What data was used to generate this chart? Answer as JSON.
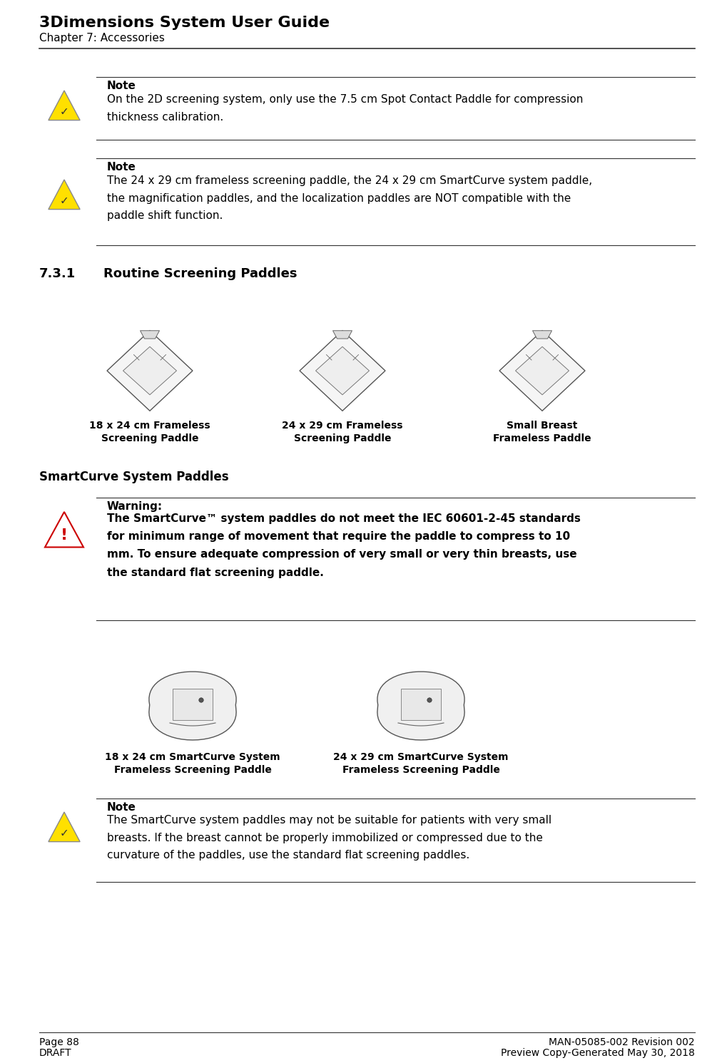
{
  "title_line1": "3Dimensions System User Guide",
  "title_line2": "Chapter 7: Accessories",
  "note1_title": "Note",
  "note1_text": "On the 2D screening system, only use the 7.5 cm Spot Contact Paddle for compression\nthickness calibration.",
  "note2_title": "Note",
  "note2_text": "The 24 x 29 cm frameless screening paddle, the 24 x 29 cm SmartCurve system paddle,\nthe magnification paddles, and the localization paddles are NOT compatible with the\npaddle shift function.",
  "section_num": "7.3.1",
  "section_title": "Routine Screening Paddles",
  "paddle1_line1": "18 x 24 cm Frameless",
  "paddle1_line2": "Screening Paddle",
  "paddle2_line1": "24 x 29 cm Frameless",
  "paddle2_line2": "Screening Paddle",
  "paddle3_line1": "Small Breast",
  "paddle3_line2": "Frameless Paddle",
  "smartcurve_title": "SmartCurve System Paddles",
  "warning_title": "Warning:",
  "warning_line1": "The SmartCurve™ system paddles do not meet the IEC 60601-2-45 standards",
  "warning_line2": "for minimum range of movement that require the paddle to compress to 10",
  "warning_line3": "mm. To ensure adequate compression of very small or very thin breasts, use",
  "warning_line4": "the standard flat screening paddle.",
  "paddle4_line1": "18 x 24 cm SmartCurve System",
  "paddle4_line2": "Frameless Screening Paddle",
  "paddle5_line1": "24 x 29 cm SmartCurve System",
  "paddle5_line2": "Frameless Screening Paddle",
  "note3_title": "Note",
  "note3_text": "The SmartCurve system paddles may not be suitable for patients with very small\nbreasts. If the breast cannot be properly immobilized or compressed due to the\ncurvature of the paddles, use the standard flat screening paddles.",
  "footer_left1": "Page 88",
  "footer_left2": "DRAFT",
  "footer_right1": "MAN-05085-002 Revision 002",
  "footer_right2": "Preview Copy-Generated May 30, 2018",
  "bg_color": "#ffffff",
  "text_color": "#000000"
}
